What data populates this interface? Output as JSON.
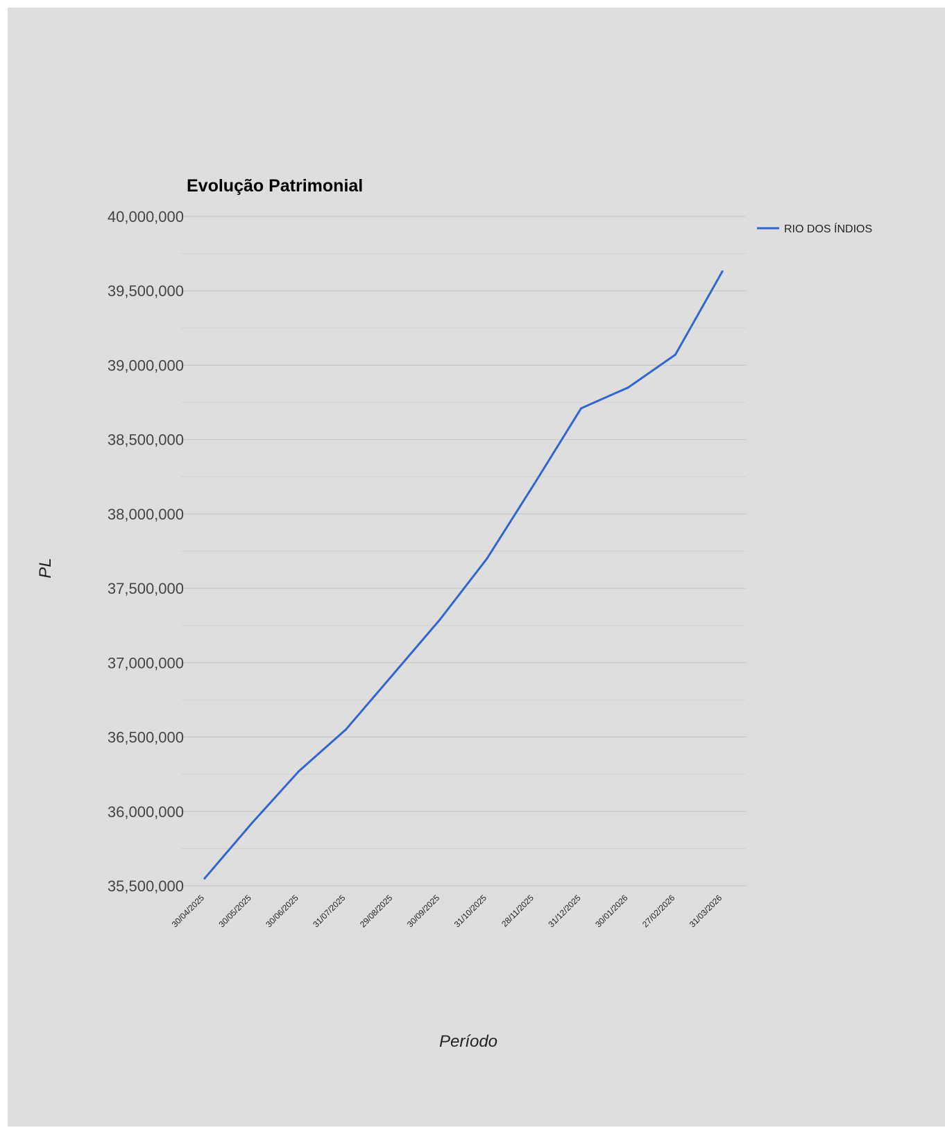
{
  "colors": {
    "background": "#dedede",
    "line": "#3366cc",
    "grid_major": "#c4c4c4",
    "grid_minor": "#d1d1d1",
    "axis_text": "#444444"
  },
  "chart_data": {
    "type": "line",
    "title": "Evolução Patrimonial",
    "xlabel": "Período",
    "ylabel": "PL",
    "categories": [
      "30/04/2025",
      "30/05/2025",
      "30/06/2025",
      "31/07/2025",
      "29/08/2025",
      "30/09/2025",
      "31/10/2025",
      "28/11/2025",
      "31/12/2025",
      "30/01/2026",
      "27/02/2026",
      "31/03/2026"
    ],
    "series": [
      {
        "name": "RIO DOS ÍNDIOS",
        "values": [
          35550000,
          35920000,
          36270000,
          36550000,
          36920000,
          37290000,
          37700000,
          38200000,
          38710000,
          38850000,
          39070000,
          39630000
        ]
      }
    ],
    "ylim": [
      35500000,
      40000000
    ],
    "y_ticks": [
      "35,500,000",
      "36,000,000",
      "36,500,000",
      "37,000,000",
      "37,500,000",
      "38,000,000",
      "38,500,000",
      "39,000,000",
      "39,500,000",
      "40,000,000"
    ],
    "y_tick_values": [
      35500000,
      36000000,
      36500000,
      37000000,
      37500000,
      38000000,
      38500000,
      39000000,
      39500000,
      40000000
    ],
    "grid": true,
    "legend_position": "right"
  }
}
